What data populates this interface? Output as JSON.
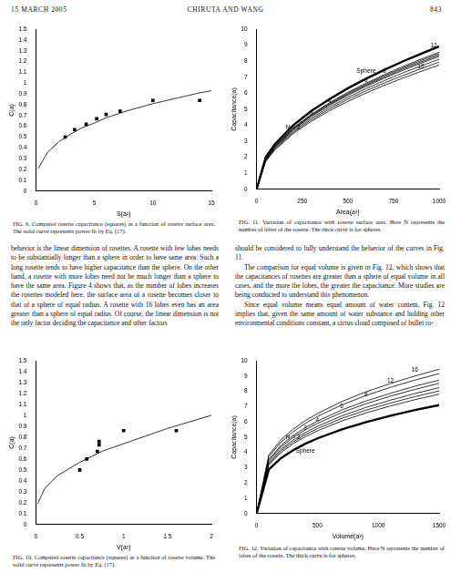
{
  "header": {
    "date": "15 MARCH 2005",
    "authors": "CHIRUTA AND WANG",
    "page": "843"
  },
  "captions": [
    "FIG. 9. Computed rosette capacitance (squares) as a function of rosette surface area. The solid curve represents power fit by Eq. (17).",
    "FIG. 10. Computed rosette capacitance (squares) as a function of rosette volume. The solid curve represents power fit by Eq. (17).",
    "FIG. 11. Variation of capacitance with rosette surface area. Here N represents the number of lobes of the rosette. The thick curve is for spheres.",
    "FIG. 12. Variation of capacitance with rosette volume. Here N represents the number of lobes of the rosette. The thick curve is for spheres."
  ],
  "body": {
    "left": [
      "behavior is the linear dimension of rosettes. A rosette with few lobes needs to be substantially longer than a sphere in order to have same area. Such a long rosette tends to have higher capacitance than the sphere. On the other hand, a rosette with more lobes need not be much longer than a sphere to have the same area. Figure 4 shows that, as the number of lobes increases the rosettes modeled here, the surface area of a rosette becomes closer to that of a sphere of equal radius. A rosette with 16 lobes even has an area greater than a sphere of equal radius. Of course, the linear dimension is not the only factor deciding the capacitance and other factors"
    ],
    "right": [
      "should be considered to fully understand the behavior of the curves in Fig. 11.",
      "The comparison for equal volume is given in Fig. 12, which shows that the capacitances of rosettes are greater than a sphere of equal volume in all cases, and the more the lobes, the greater the capacitance. More studies are being conducted to understand this phenomenon.",
      "Since equal volume means equal amount of water content, Fig. 12 implies that, given the same amount of water substance and holding other environmental conditions constant, a cirrus cloud composed of bullet ro-"
    ]
  },
  "chart_data": [
    {
      "type": "scatter",
      "x_label": "S(a²)",
      "y_label": "C(a)",
      "grid": false,
      "xlim": [
        0,
        15
      ],
      "xticks": [
        0,
        5,
        10,
        15
      ],
      "ylim": [
        0,
        1.5
      ],
      "yticks": [
        0,
        0.1,
        0.2,
        0.3,
        0.4,
        0.5,
        0.6,
        0.7,
        0.8,
        0.9,
        1,
        1.1,
        1.2,
        1.3,
        1.4,
        1.5
      ],
      "series": [
        {
          "type": "scatter",
          "marker": "square",
          "color": "#000000",
          "x": [
            2.5,
            3.3,
            4.3,
            5.2,
            6,
            7.2,
            10,
            14
          ],
          "values": [
            0.5,
            0.57,
            0.62,
            0.67,
            0.71,
            0.74,
            0.84,
            0.84
          ]
        },
        {
          "type": "line",
          "line_style": "solid",
          "color": "#000000",
          "x": [
            0.2,
            1,
            2,
            3,
            4,
            5,
            6,
            8,
            10,
            12,
            14,
            15
          ],
          "values": [
            0.21,
            0.36,
            0.46,
            0.53,
            0.59,
            0.63,
            0.68,
            0.75,
            0.81,
            0.86,
            0.91,
            0.93
          ]
        }
      ]
    },
    {
      "type": "scatter",
      "x_label": "V(a³)",
      "y_label": "C(a)",
      "grid": false,
      "xlim": [
        0,
        2
      ],
      "xticks": [
        0,
        0.5,
        1,
        1.5,
        2
      ],
      "ylim": [
        0,
        1.5
      ],
      "yticks": [
        0,
        0.1,
        0.2,
        0.3,
        0.4,
        0.5,
        0.6,
        0.7,
        0.8,
        0.9,
        1,
        1.1,
        1.2,
        1.3,
        1.4,
        1.5
      ],
      "series": [
        {
          "type": "scatter",
          "marker": "square",
          "color": "#000000",
          "x": [
            0.5,
            0.58,
            0.7,
            0.72,
            0.72,
            1,
            1.6
          ],
          "values": [
            0.5,
            0.6,
            0.67,
            0.73,
            0.76,
            0.86,
            0.86
          ]
        },
        {
          "type": "line",
          "line_style": "solid",
          "color": "#000000",
          "x": [
            0.02,
            0.1,
            0.25,
            0.5,
            0.75,
            1,
            1.25,
            1.5,
            1.75,
            2
          ],
          "values": [
            0.19,
            0.33,
            0.45,
            0.57,
            0.67,
            0.74,
            0.81,
            0.88,
            0.94,
            1.0
          ]
        }
      ]
    },
    {
      "type": "line",
      "x_label": "Area(a²)",
      "y_label": "Capacitance(a)",
      "grid": false,
      "xlim": [
        0,
        1000
      ],
      "xticks": [
        0,
        250,
        500,
        750,
        1000
      ],
      "ylim": [
        0,
        10
      ],
      "yticks": [
        0,
        1,
        2,
        3,
        4,
        5,
        6,
        7,
        8,
        9,
        10
      ],
      "x": [
        0,
        50,
        100,
        200,
        300,
        400,
        500,
        600,
        700,
        800,
        900,
        1000
      ],
      "series": [
        {
          "name": "N = 2",
          "color": "#000000",
          "line_style": "thin",
          "values": [
            0,
            1.74,
            2.45,
            3.47,
            4.25,
            4.91,
            5.49,
            6.01,
            6.49,
            6.94,
            7.36,
            7.76
          ]
        },
        {
          "name": "3",
          "color": "#000000",
          "line_style": "thin",
          "values": [
            0,
            1.78,
            2.51,
            3.55,
            4.35,
            5.02,
            5.62,
            6.15,
            6.64,
            7.1,
            7.53,
            7.94
          ]
        },
        {
          "name": "4",
          "color": "#000000",
          "line_style": "thin",
          "values": [
            0,
            1.82,
            2.57,
            3.63,
            4.45,
            5.13,
            5.74,
            6.29,
            6.79,
            7.26,
            7.7,
            8.12
          ]
        },
        {
          "name": "6",
          "color": "#000000",
          "line_style": "thin",
          "values": [
            0,
            1.86,
            2.62,
            3.71,
            4.55,
            5.25,
            5.87,
            6.43,
            6.94,
            7.42,
            7.87,
            8.3
          ]
        },
        {
          "name": "8",
          "color": "#000000",
          "line_style": "thin",
          "values": [
            0,
            1.88,
            2.65,
            3.75,
            4.6,
            5.3,
            5.93,
            6.5,
            7.01,
            7.5,
            7.95,
            8.38
          ]
        },
        {
          "name": "12",
          "color": "#000000",
          "line_style": "thin",
          "values": [
            0,
            1.92,
            2.71,
            3.83,
            4.69,
            5.41,
            6.06,
            6.63,
            7.16,
            7.66,
            8.12,
            8.56
          ]
        },
        {
          "name": "16",
          "color": "#000000",
          "line_style": "thin",
          "values": [
            0,
            1.9,
            2.68,
            3.79,
            4.65,
            5.36,
            5.99,
            6.56,
            7.09,
            7.58,
            8.04,
            8.47
          ]
        },
        {
          "name": "Sphere",
          "color": "#000000",
          "line_style": "thick",
          "values": [
            0,
            2.0,
            2.82,
            3.99,
            4.89,
            5.64,
            6.31,
            6.91,
            7.46,
            7.98,
            8.46,
            8.92
          ]
        }
      ]
    },
    {
      "type": "line",
      "x_label": "Volume(a³)",
      "y_label": "Capacitance(a)",
      "grid": false,
      "xlim": [
        0,
        1500
      ],
      "xticks": [
        0,
        500,
        1000,
        1500
      ],
      "ylim": [
        0,
        10
      ],
      "yticks": [
        0,
        1,
        2,
        3,
        4,
        5,
        6,
        7,
        8,
        9,
        10
      ],
      "x": [
        0,
        100,
        200,
        300,
        400,
        500,
        700,
        900,
        1100,
        1300,
        1500
      ],
      "series": [
        {
          "name": "N = 2",
          "color": "#000000",
          "line_style": "thin",
          "values": [
            0,
            3.17,
            3.99,
            4.57,
            5.03,
            5.41,
            6.06,
            6.59,
            7.04,
            7.45,
            7.81
          ]
        },
        {
          "name": "3",
          "color": "#000000",
          "line_style": "thin",
          "values": [
            0,
            3.25,
            4.1,
            4.69,
            5.16,
            5.56,
            6.23,
            6.77,
            7.23,
            7.65,
            8.02
          ]
        },
        {
          "name": "4",
          "color": "#000000",
          "line_style": "thin",
          "values": [
            0,
            3.34,
            4.21,
            4.81,
            5.3,
            5.71,
            6.39,
            6.95,
            7.42,
            7.85,
            8.24
          ]
        },
        {
          "name": "6",
          "color": "#000000",
          "line_style": "thin",
          "values": [
            0,
            3.46,
            4.36,
            4.98,
            5.48,
            5.9,
            6.61,
            7.19,
            7.68,
            8.12,
            8.52
          ]
        },
        {
          "name": "8",
          "color": "#000000",
          "line_style": "thin",
          "values": [
            0,
            3.54,
            4.46,
            5.1,
            5.62,
            6.05,
            6.78,
            7.37,
            7.87,
            8.33,
            8.73
          ]
        },
        {
          "name": "12",
          "color": "#000000",
          "line_style": "thin",
          "values": [
            0,
            3.72,
            4.68,
            5.35,
            5.9,
            6.35,
            7.11,
            7.73,
            8.26,
            8.73,
            9.16
          ]
        },
        {
          "name": "16",
          "color": "#000000",
          "line_style": "thin",
          "values": [
            0,
            3.83,
            4.83,
            5.52,
            6.08,
            6.54,
            7.33,
            7.97,
            8.51,
            9.0,
            9.44
          ]
        },
        {
          "name": "Sphere",
          "color": "#000000",
          "line_style": "thick",
          "values": [
            0,
            2.88,
            3.63,
            4.15,
            4.57,
            4.92,
            5.51,
            5.99,
            6.4,
            6.77,
            7.1
          ]
        }
      ]
    }
  ]
}
